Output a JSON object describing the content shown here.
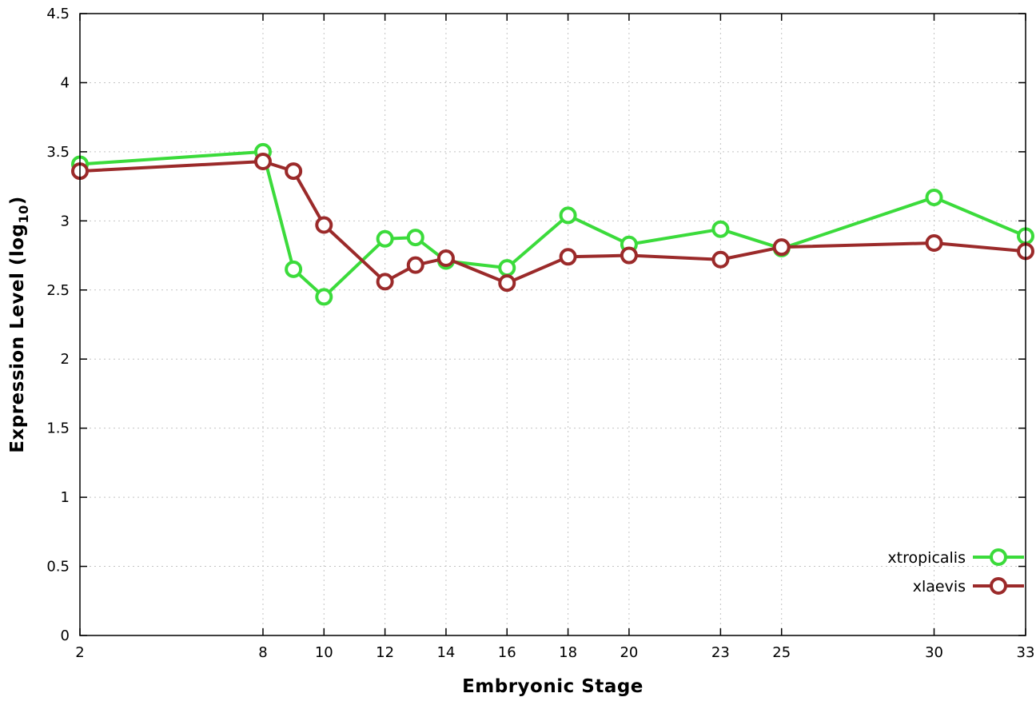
{
  "chart_data": {
    "type": "line",
    "x": [
      2,
      8,
      9,
      10,
      12,
      13,
      14,
      16,
      18,
      20,
      23,
      25,
      30,
      33
    ],
    "series": [
      {
        "name": "xtropicalis",
        "color": "#3bdb3b",
        "values": [
          3.41,
          3.5,
          2.65,
          2.45,
          2.87,
          2.88,
          2.71,
          2.66,
          3.04,
          2.83,
          2.94,
          2.8,
          3.17,
          2.89
        ]
      },
      {
        "name": "xlaevis",
        "color": "#9b2a2a",
        "values": [
          3.36,
          3.43,
          3.36,
          2.97,
          2.56,
          2.68,
          2.73,
          2.55,
          2.74,
          2.75,
          2.72,
          2.81,
          2.84,
          2.78
        ]
      }
    ],
    "title": "",
    "xlabel": "Embryonic Stage",
    "ylabel_prefix": "Expression Level (log",
    "ylabel_sub": "10",
    "ylabel_suffix": ")",
    "xlim": [
      2,
      33
    ],
    "ylim": [
      0,
      4.5
    ],
    "xticks": [
      2,
      8,
      10,
      12,
      14,
      16,
      18,
      20,
      23,
      25,
      30,
      33
    ],
    "yticks": [
      0,
      0.5,
      1,
      1.5,
      2,
      2.5,
      3,
      3.5,
      4,
      4.5
    ],
    "ytick_labels": [
      "0",
      "0.5",
      "1",
      "1.5",
      "2",
      "2.5",
      "3",
      "3.5",
      "4",
      "4.5"
    ],
    "grid": true,
    "legend": {
      "position": "bottom-right",
      "entries": [
        "xtropicalis",
        "xlaevis"
      ]
    },
    "background": "#ffffff",
    "grid_color": "#c4c4c4",
    "axis_color": "#000000"
  }
}
